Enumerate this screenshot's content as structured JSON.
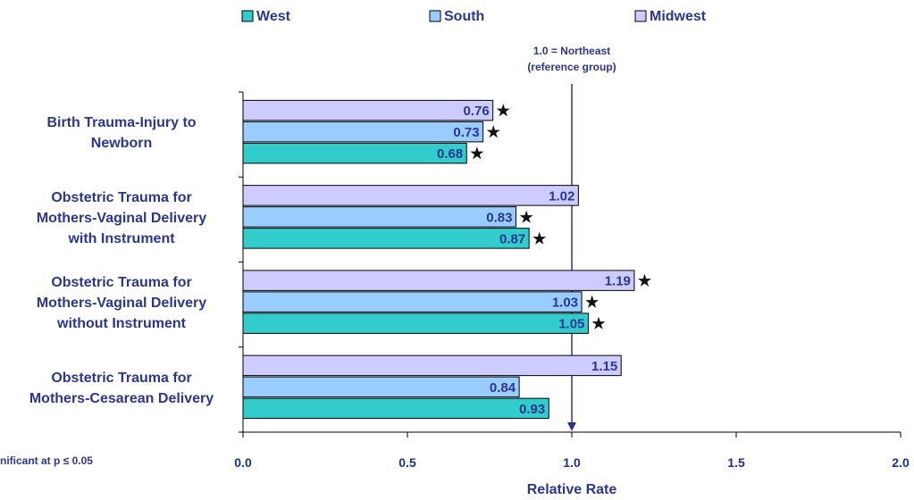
{
  "chart_data": {
    "type": "bar",
    "orientation": "horizontal",
    "categories": [
      [
        "Birth Trauma-Injury to",
        "Newborn"
      ],
      [
        "Obstetric Trauma for",
        "Mothers-Vaginal Delivery",
        "with Instrument"
      ],
      [
        "Obstetric Trauma for",
        "Mothers-Vaginal Delivery",
        "without Instrument"
      ],
      [
        "Obstetric Trauma for",
        "Mothers-Cesarean Delivery"
      ]
    ],
    "series": [
      {
        "name": "West",
        "color": "#33cccc",
        "values": [
          0.68,
          0.87,
          1.05,
          0.93
        ],
        "labels": [
          "0.68",
          "0.87",
          "1.05",
          "0.93"
        ],
        "significant": [
          true,
          true,
          true,
          false
        ]
      },
      {
        "name": "South",
        "color": "#99ccff",
        "values": [
          0.73,
          0.83,
          1.03,
          0.84
        ],
        "labels": [
          "0.73",
          "0.83",
          "1.03",
          "0.84"
        ],
        "significant": [
          true,
          true,
          true,
          false
        ]
      },
      {
        "name": "Midwest",
        "color": "#ccccff",
        "values": [
          0.76,
          1.02,
          1.19,
          1.15
        ],
        "labels": [
          "0.76",
          "1.02",
          "1.19",
          "1.15"
        ],
        "significant": [
          true,
          false,
          true,
          false
        ]
      }
    ],
    "series_draw_order_top_to_bottom": [
      "Midwest",
      "South",
      "West"
    ],
    "xlim": [
      0,
      2
    ],
    "xticks": [
      0,
      0.5,
      1,
      1.5,
      2
    ],
    "xtick_labels": [
      "0.0",
      "0.5",
      "1.0",
      "1.5",
      "2.0"
    ],
    "xlabel": "Relative Rate",
    "reference_line": {
      "x": 1.0,
      "label": [
        "1.0 = Northeast",
        "(reference group)"
      ]
    },
    "legend_position": "top",
    "significance_marker": "★",
    "footnote": "nificant at p ≤ 0.05",
    "grid": false
  }
}
